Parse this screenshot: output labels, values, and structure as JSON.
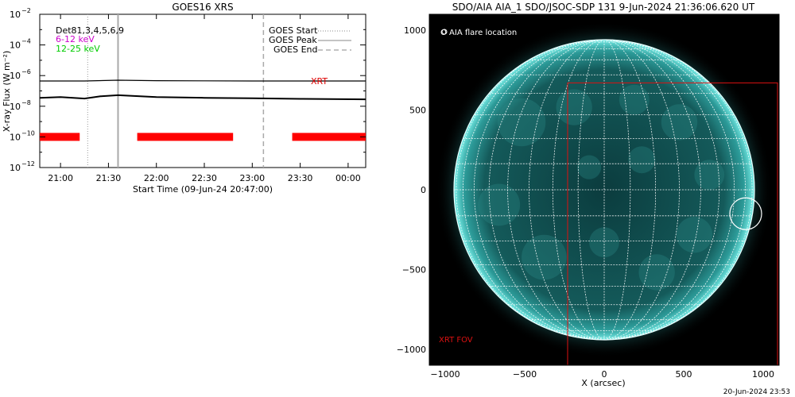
{
  "left_panel": {
    "title": "GOES16 XRS",
    "ylabel": "X-ray Flux (W m⁻²)",
    "xlabel": "Start Time (09-Jun-24 20:47:00)",
    "channel_labels": [
      {
        "text": "Det81,3,4,5,6,9",
        "color": "#000000"
      },
      {
        "text": "6-12 keV",
        "color": "#cc00cc"
      },
      {
        "text": "12-25 keV",
        "color": "#00cc00"
      }
    ],
    "legend": [
      {
        "label": "GOES Start",
        "style": "dotted"
      },
      {
        "label": "GOES Peak",
        "style": "solid"
      },
      {
        "label": "GOES End",
        "style": "dashed"
      }
    ],
    "xrt_label": "XRT"
  },
  "right_panel": {
    "title": "SDO/AIA AIA_1 SDO/JSOC-SDP 131  9-Jun-2024 21:36:06.620 UT",
    "legend_label": "O AIA flare location",
    "fov_label": "XRT FOV",
    "xlabel": "X (arcsec)",
    "colors": {
      "background": "#000000",
      "disk": "#0f4a4a",
      "limb": "#63e0dc",
      "fov": "#dd1111"
    }
  },
  "footer": {
    "timestamp": "20-Jun-2024 23:53"
  },
  "chart_data": [
    {
      "type": "line",
      "title": "GOES16 XRS",
      "xlabel": "Start Time (09-Jun-24 20:47:00)",
      "ylabel": "X-ray Flux (W m⁻²)",
      "y_scale": "log",
      "ylim_exponent": [
        -12,
        -2
      ],
      "xlim": [
        "20:47",
        "00:11"
      ],
      "x_ticks": [
        "21:00",
        "21:30",
        "22:00",
        "22:30",
        "23:00",
        "23:30",
        "00:00"
      ],
      "y_tick_exponents": [
        -12,
        -10,
        -8,
        -6,
        -4,
        -2
      ],
      "series": [
        {
          "name": "",
          "color": "#000000",
          "x": [
            "20:47",
            "21:15",
            "21:36",
            "22:00",
            "22:30",
            "23:00",
            "23:30",
            "00:11"
          ],
          "y_exponent": [
            -6.35,
            -6.35,
            -6.3,
            -6.33,
            -6.34,
            -6.35,
            -6.35,
            -6.35
          ]
        },
        {
          "name": "",
          "color": "#000000",
          "x": [
            "20:47",
            "21:00",
            "21:15",
            "21:25",
            "21:36",
            "22:00",
            "22:30",
            "23:00",
            "23:30",
            "00:11"
          ],
          "y_exponent": [
            -7.45,
            -7.4,
            -7.5,
            -7.35,
            -7.28,
            -7.4,
            -7.45,
            -7.48,
            -7.52,
            -7.55
          ]
        }
      ],
      "flare_markers": {
        "start": "21:17",
        "peak": "21:36",
        "end": "23:07"
      },
      "xrt_intervals": [
        [
          "20:47",
          "21:12"
        ],
        [
          "21:48",
          "22:48"
        ],
        [
          "23:25",
          "00:11"
        ]
      ]
    },
    {
      "type": "image",
      "title": "SDO/AIA AIA_1 SDO/JSOC-SDP 131  9-Jun-2024 21:36:06.620 UT",
      "xlabel": "X (arcsec)",
      "x_ticks": [
        -1000,
        -500,
        0,
        500,
        1000
      ],
      "y_ticks": [
        -1000,
        -500,
        0,
        500,
        1000
      ],
      "xlim": [
        -1100,
        1100
      ],
      "ylim": [
        -1100,
        1100
      ],
      "solar_radius_arcsec": 945,
      "flare_location": {
        "x": 890,
        "y": -150
      },
      "xrt_fov": {
        "x": [
          -230,
          1090
        ],
        "y": [
          -1100,
          670
        ]
      }
    }
  ]
}
